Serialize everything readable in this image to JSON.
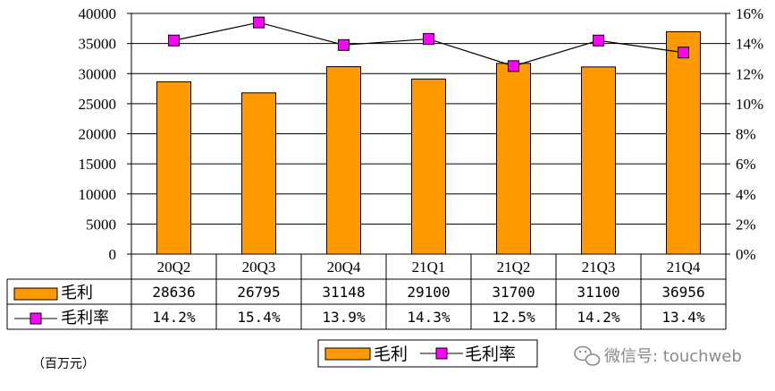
{
  "chart_data": {
    "type": "bar",
    "categories": [
      "20Q2",
      "20Q3",
      "20Q4",
      "21Q1",
      "21Q2",
      "21Q3",
      "21Q4"
    ],
    "series": [
      {
        "name": "毛利",
        "type": "bar",
        "axis": "left",
        "color": "#FF9900",
        "values": [
          28636,
          26795,
          31148,
          29100,
          31700,
          31100,
          36956
        ],
        "labels": [
          "28636",
          "26795",
          "31148",
          "29100",
          "31700",
          "31100",
          "36956"
        ]
      },
      {
        "name": "毛利率",
        "type": "line",
        "axis": "right",
        "color": "#FF00FF",
        "values": [
          14.2,
          15.4,
          13.9,
          14.3,
          12.5,
          14.2,
          13.4
        ],
        "labels": [
          "14.2%",
          "15.4%",
          "13.9%",
          "14.3%",
          "12.5%",
          "14.2%",
          "13.4%"
        ]
      }
    ],
    "y_left": {
      "ylim": [
        0,
        40000
      ],
      "ticks": [
        "0",
        "5000",
        "10000",
        "15000",
        "20000",
        "25000",
        "30000",
        "35000",
        "40000"
      ]
    },
    "y_right": {
      "ylim": [
        0,
        16
      ],
      "ticks": [
        "0%",
        "2%",
        "4%",
        "6%",
        "8%",
        "10%",
        "12%",
        "14%",
        "16%"
      ]
    },
    "grid": true,
    "legend": {
      "position": "bottom-center",
      "entries": [
        "毛利",
        "毛利率"
      ]
    },
    "unit_note": "（百万元）"
  },
  "watermark": {
    "text": "微信号: touchweb"
  },
  "colors": {
    "line": "#000000",
    "marker_fill": "#FF00FF",
    "bar_stroke": "#000000"
  }
}
